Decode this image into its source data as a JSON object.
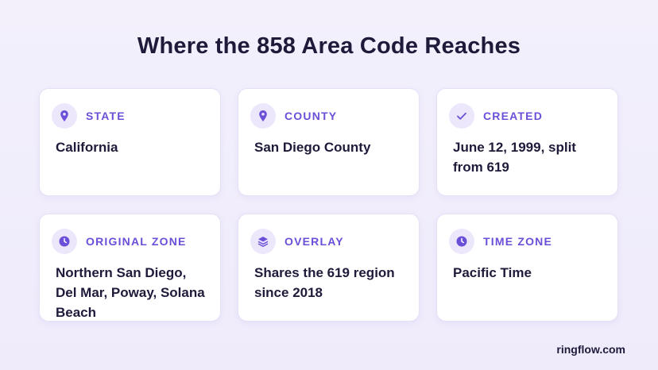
{
  "title": "Where the 858 Area Code Reaches",
  "cards": [
    {
      "label": "STATE",
      "value": "California"
    },
    {
      "label": "COUNTY",
      "value": "San Diego County"
    },
    {
      "label": "CREATED",
      "value": "June 12, 1999, split from 619"
    },
    {
      "label": "ORIGINAL ZONE",
      "value": "Northern San Diego, Del Mar, Poway, Solana Beach"
    },
    {
      "label": "OVERLAY",
      "value": "Shares the 619 region since 2018"
    },
    {
      "label": "TIME ZONE",
      "value": "Pacific Time"
    }
  ],
  "footer": "ringflow.com"
}
